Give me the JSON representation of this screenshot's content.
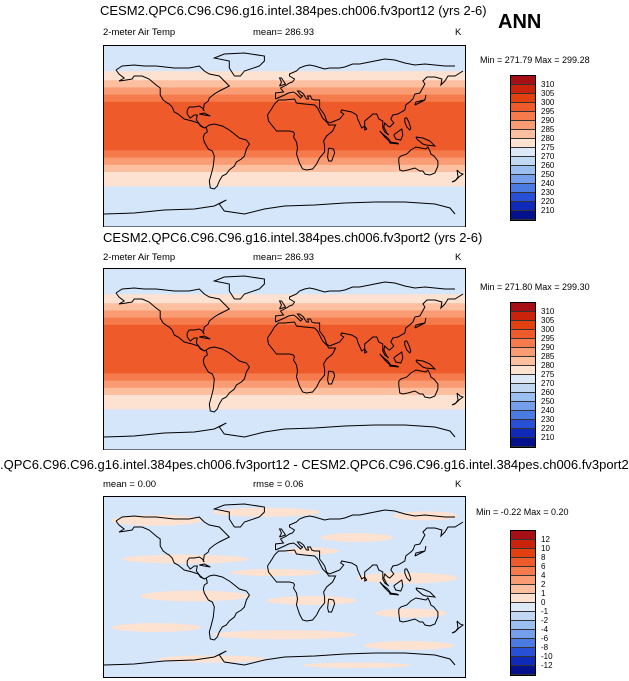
{
  "ann_label": "ANN",
  "panels": [
    {
      "title": "CESM2.QPC6.C96.C96.g16.intel.384pes.ch006.fv3port12 (yrs 2-6)",
      "left_label": "2-meter Air Temp",
      "center_label": "mean= 286.93",
      "units": "K",
      "minmax": "Min = 271.79 Max = 299.28",
      "colorbar": {
        "levels": [
          "310",
          "305",
          "300",
          "295",
          "290",
          "285",
          "280",
          "275",
          "270",
          "260",
          "250",
          "240",
          "230",
          "220",
          "210"
        ],
        "colors": [
          "#a50f15",
          "#c9230c",
          "#e3400f",
          "#ef5a2a",
          "#f57b4c",
          "#f99c73",
          "#fcbfa0",
          "#fde2d2",
          "#dde9f7",
          "#c2d7f2",
          "#9bbff0",
          "#759fec",
          "#4c7ae3",
          "#2750d6",
          "#0f2ab8",
          "#03118d"
        ]
      },
      "map_bands": [
        "#d5e5fa",
        "#fde2d2",
        "#fcbfa0",
        "#f99c73",
        "#f57b4c",
        "#ef5a2a",
        "#f57b4c",
        "#f99c73",
        "#fcbfa0",
        "#fde2d2",
        "#d5e5fa"
      ]
    },
    {
      "title": "CESM2.QPC6.C96.C96.g16.intel.384pes.ch006.fv3port2 (yrs 2-6)",
      "left_label": "2-meter Air Temp",
      "center_label": "mean= 286.93",
      "units": "K",
      "minmax": "Min = 271.80 Max = 299.30",
      "colorbar": {
        "levels": [
          "310",
          "305",
          "300",
          "295",
          "290",
          "285",
          "280",
          "275",
          "270",
          "260",
          "250",
          "240",
          "230",
          "220",
          "210"
        ],
        "colors": [
          "#a50f15",
          "#c9230c",
          "#e3400f",
          "#ef5a2a",
          "#f57b4c",
          "#f99c73",
          "#fcbfa0",
          "#fde2d2",
          "#dde9f7",
          "#c2d7f2",
          "#9bbff0",
          "#759fec",
          "#4c7ae3",
          "#2750d6",
          "#0f2ab8",
          "#03118d"
        ]
      },
      "map_bands": [
        "#d5e5fa",
        "#fde2d2",
        "#fcbfa0",
        "#f99c73",
        "#f57b4c",
        "#ef5a2a",
        "#f57b4c",
        "#f99c73",
        "#fcbfa0",
        "#fde2d2",
        "#d5e5fa"
      ]
    },
    {
      "title": ".QPC6.C96.C96.g16.intel.384pes.ch006.fv3port12 - CESM2.QPC6.C96.C96.g16.intel.384pes.ch006.fv3port2",
      "left_label": "mean =  0.00",
      "center_label": "rmse =  0.06",
      "units": "K",
      "minmax": "Min = -0.22 Max =  0.20",
      "colorbar": {
        "levels": [
          "12",
          "10",
          "8",
          "6",
          "4",
          "2",
          "1",
          "0",
          "-1",
          "-2",
          "-4",
          "-6",
          "-8",
          "-10",
          "-12"
        ],
        "colors": [
          "#a50f15",
          "#c9230c",
          "#e3400f",
          "#ef5a2a",
          "#f57b4c",
          "#f99c73",
          "#fcbfa0",
          "#fde2d2",
          "#dde9f7",
          "#c2d7f2",
          "#9bbff0",
          "#759fec",
          "#4c7ae3",
          "#2750d6",
          "#0f2ab8",
          "#03118d"
        ]
      },
      "map_bands": [
        "#d5e5fa"
      ]
    }
  ]
}
